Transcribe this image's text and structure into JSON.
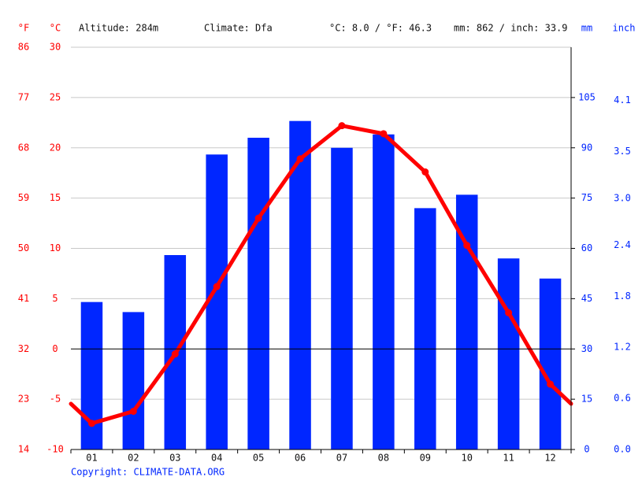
{
  "chart_data": {
    "type": "combo",
    "y_f_label": "°F",
    "y_label": "°C",
    "y2_label": "mm",
    "y2_inch_label": "inch",
    "annotations": [
      "Altitude: 284m",
      "Climate: Dfa",
      "°C: 8.0 / °F: 46.3",
      "mm: 862 / inch: 33.9"
    ],
    "copyright": "Copyright: CLIMATE-DATA.ORG",
    "categories": [
      "01",
      "02",
      "03",
      "04",
      "05",
      "06",
      "07",
      "08",
      "09",
      "10",
      "11",
      "12"
    ],
    "series": [
      {
        "type": "bar",
        "axis": "y2",
        "color": "#0026ff",
        "values": [
          44,
          41,
          58,
          88,
          93,
          98,
          90,
          94,
          72,
          76,
          57,
          51
        ]
      },
      {
        "type": "line",
        "color": "#ff0000",
        "values": [
          -7.4,
          -6.2,
          -0.5,
          6.2,
          13.0,
          18.9,
          22.2,
          21.4,
          17.6,
          10.3,
          3.6,
          -3.5
        ]
      }
    ],
    "ylim": [
      -10,
      30
    ],
    "yticks": [
      -10,
      -5,
      0,
      5,
      10,
      15,
      20,
      25,
      30
    ],
    "y_f_lim": [
      14,
      86
    ],
    "y_f_ticks": [
      14,
      23,
      32,
      41,
      50,
      59,
      68,
      77,
      86
    ],
    "y2lim": [
      0,
      120
    ],
    "y2ticks": [
      0,
      15,
      30,
      45,
      60,
      75,
      90,
      105
    ],
    "y2_inch_lim": [
      0,
      4.724
    ],
    "y2_inch_ticks": [
      {
        "value": 0,
        "label": "0.0"
      },
      0.6,
      1.2,
      1.8,
      2.4,
      {
        "value": 2.95,
        "label": "3.0"
      },
      3.5,
      4.1
    ],
    "grid": true
  }
}
